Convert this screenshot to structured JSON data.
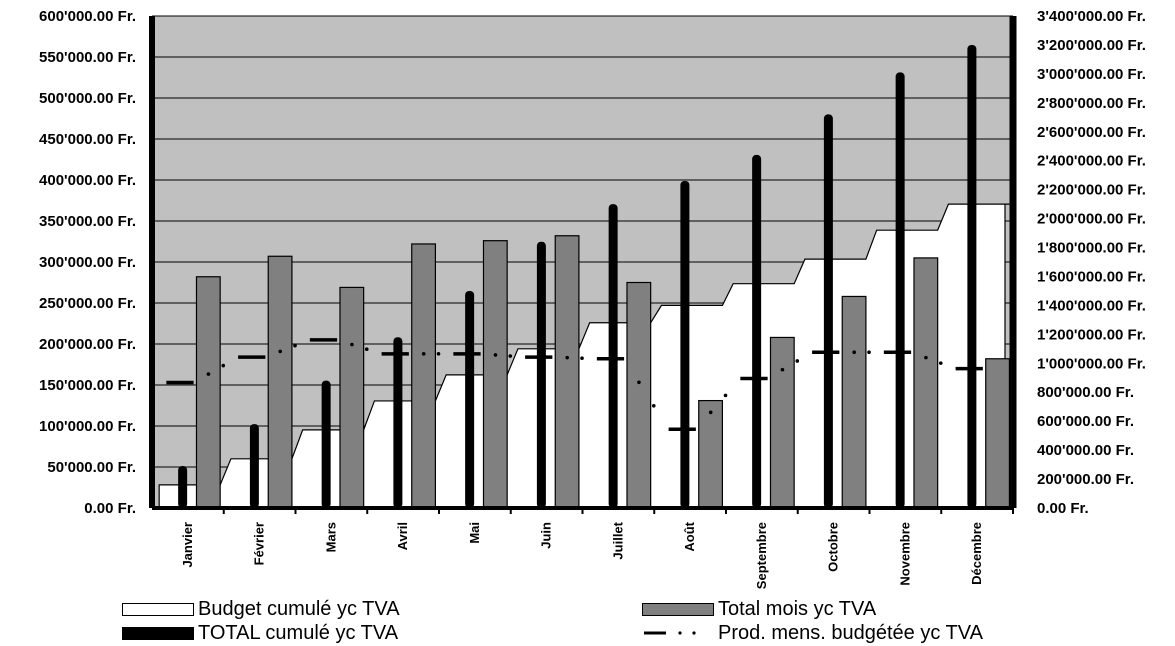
{
  "chart_data": {
    "type": "bar",
    "categories": [
      "Janvier",
      "Février",
      "Mars",
      "Avril",
      "Mai",
      "Juin",
      "Juillet",
      "Août",
      "Septembre",
      "Octobre",
      "Novembre",
      "Décembre"
    ],
    "y_left": {
      "ticks": [
        "0.00 Fr.",
        "50'000.00 Fr.",
        "100'000.00 Fr.",
        "150'000.00 Fr.",
        "200'000.00 Fr.",
        "250'000.00 Fr.",
        "300'000.00 Fr.",
        "350'000.00 Fr.",
        "400'000.00 Fr.",
        "450'000.00 Fr.",
        "500'000.00 Fr.",
        "550'000.00 Fr.",
        "600'000.00 Fr."
      ],
      "range": [
        0,
        600000
      ]
    },
    "y_right": {
      "ticks": [
        "0.00 Fr.",
        "200'000.00 Fr.",
        "400'000.00 Fr.",
        "600'000.00 Fr.",
        "800'000.00 Fr.",
        "1'000'000.00 Fr.",
        "1'200'000.00 Fr.",
        "1'400'000.00 Fr.",
        "1'600'000.00 Fr.",
        "1'800'000.00 Fr.",
        "2'000'000.00 Fr.",
        "2'200'000.00 Fr.",
        "2'400'000.00 Fr.",
        "2'600'000.00 Fr.",
        "2'800'000.00 Fr.",
        "3'000'000.00 Fr.",
        "3'200'000.00 Fr.",
        "3'400'000.00 Fr."
      ],
      "range": [
        0,
        3400000
      ]
    },
    "series": [
      {
        "name": "Budget cumulé yc TVA",
        "kind": "area-step",
        "axis": "right",
        "color": "#ffffff",
        "values": [
          160000,
          340000,
          540000,
          740000,
          920000,
          1100000,
          1280000,
          1400000,
          1550000,
          1720000,
          1920000,
          2100000
        ]
      },
      {
        "name": "TOTAL cumulé yc TVA",
        "kind": "bar",
        "axis": "right",
        "color": "#000000",
        "values": [
          290000,
          580000,
          880000,
          1180000,
          1500000,
          1840000,
          2100000,
          2260000,
          2440000,
          2720000,
          3010000,
          3200000
        ]
      },
      {
        "name": "Total mois yc TVA",
        "kind": "bar",
        "axis": "left",
        "color": "#808080",
        "values": [
          282000,
          307000,
          269000,
          322000,
          326000,
          332000,
          275000,
          131000,
          208000,
          258000,
          305000,
          182000
        ]
      },
      {
        "name": "Prod. mens. budgétée yc TVA",
        "kind": "line-dashdot",
        "axis": "left",
        "color": "#000000",
        "values": [
          153000,
          184000,
          205000,
          188000,
          188000,
          184000,
          182000,
          96000,
          158000,
          190000,
          190000,
          170000
        ]
      }
    ],
    "title": "",
    "xlabel": "",
    "ylabel": "",
    "grid": "horizontal",
    "legend_position": "bottom",
    "colors": {
      "plot_background": "#c0c0c0",
      "gridline": "#000000"
    }
  }
}
